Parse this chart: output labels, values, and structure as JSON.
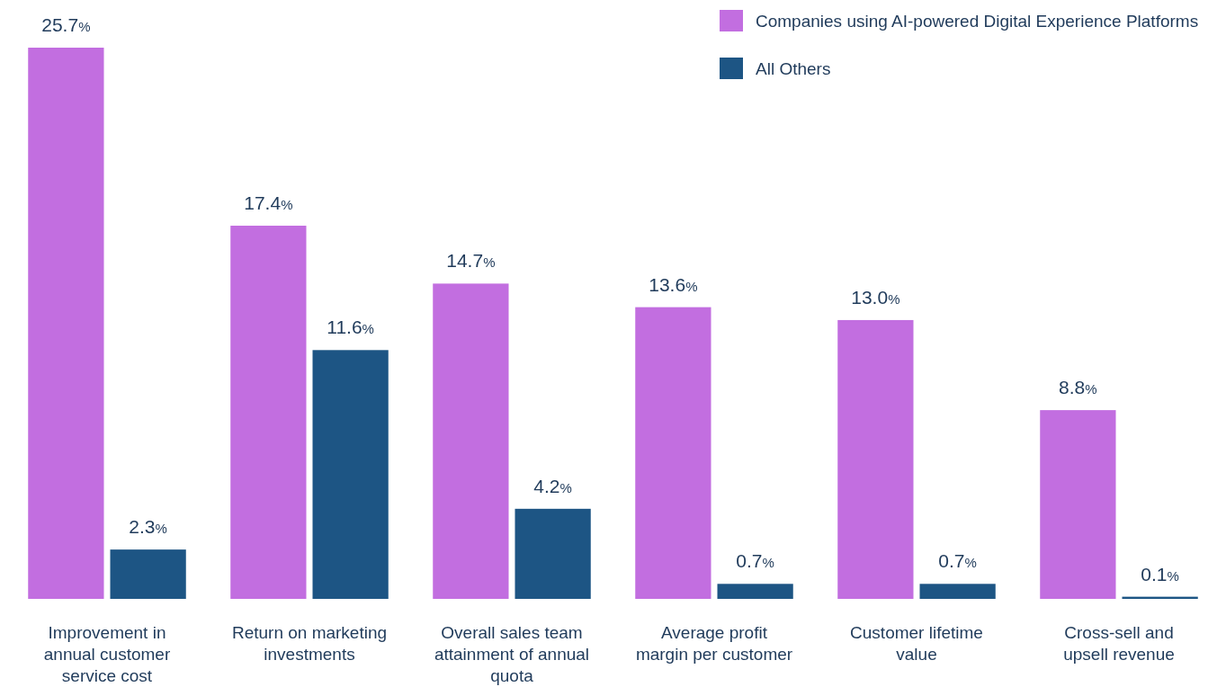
{
  "chart_data": {
    "type": "bar",
    "categories": [
      "Improvement in annual customer service cost",
      "Return on marketing investments",
      "Overall sales team attainment of annual quota",
      "Average profit margin per customer",
      "Customer lifetime value",
      "Cross-sell and upsell revenue"
    ],
    "series": [
      {
        "name": "Companies using AI-powered Digital Experience Platforms",
        "color": "#c26ee0",
        "values": [
          25.7,
          17.4,
          14.7,
          13.6,
          13.0,
          8.8
        ],
        "value_labels": [
          "25.7%",
          "17.4%",
          "14.7%",
          "13.6%",
          "13.0%",
          "8.8%"
        ]
      },
      {
        "name": "All Others",
        "color": "#1d5584",
        "values": [
          2.3,
          11.6,
          4.2,
          0.7,
          0.7,
          0.1
        ],
        "value_labels": [
          "2.3%",
          "11.6%",
          "4.2%",
          "0.7%",
          "0.7%",
          "0.1%"
        ]
      }
    ],
    "legend": "top right"
  }
}
